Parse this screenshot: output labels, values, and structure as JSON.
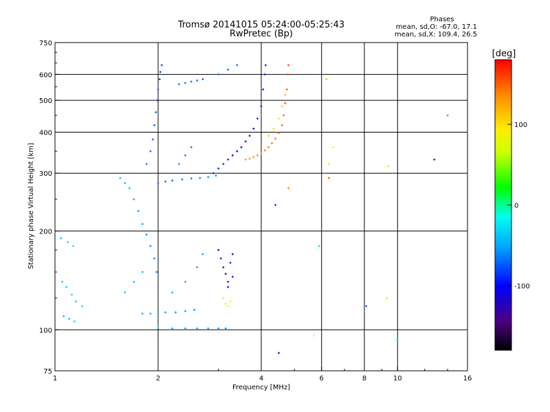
{
  "chart_data": {
    "type": "scatter",
    "title": "Tromsø 20141015 05:24:00-05:25:43",
    "subtitle": "RwPretec (Bp)",
    "stats": {
      "heading": "Phases",
      "line1": "mean, sd,O: -67.0, 17.1",
      "line2": "mean, sd,X: 109.4, 26.5"
    },
    "xlabel": "Frequency [MHz]",
    "ylabel": "Stationary phase Virtual Height [km]",
    "x_scale": "log",
    "y_scale": "log",
    "xlim": [
      1,
      16
    ],
    "ylim": [
      75,
      750
    ],
    "x_ticks": [
      1,
      2,
      4,
      6,
      8,
      10,
      16
    ],
    "y_ticks": [
      75,
      100,
      200,
      300,
      400,
      500,
      600,
      750
    ],
    "x_grid": [
      2,
      4,
      6,
      8,
      10
    ],
    "y_grid": [
      100,
      200,
      300,
      400,
      500,
      600
    ],
    "grid": true,
    "colorbar": {
      "label": "[deg]",
      "min": -180,
      "max": 180,
      "ticks": [
        -100,
        0,
        100
      ]
    },
    "series": [
      {
        "description_id": "O-mode traces",
        "points": [
          [
            1.05,
            140,
            -40
          ],
          [
            1.08,
            135,
            -38
          ],
          [
            1.12,
            128,
            -35
          ],
          [
            1.15,
            122,
            -33
          ],
          [
            1.2,
            118,
            -30
          ],
          [
            1.06,
            110,
            -42
          ],
          [
            1.1,
            108,
            -40
          ],
          [
            1.14,
            106,
            -38
          ],
          [
            1.04,
            190,
            -36
          ],
          [
            1.09,
            185,
            -34
          ],
          [
            1.13,
            180,
            -30
          ],
          [
            1.55,
            290,
            -45
          ],
          [
            1.6,
            280,
            -48
          ],
          [
            1.65,
            270,
            -50
          ],
          [
            1.7,
            250,
            -52
          ],
          [
            1.75,
            230,
            -55
          ],
          [
            1.8,
            210,
            -58
          ],
          [
            1.85,
            195,
            -60
          ],
          [
            1.9,
            180,
            -62
          ],
          [
            1.95,
            165,
            -64
          ],
          [
            1.98,
            150,
            -66
          ],
          [
            1.85,
            320,
            -70
          ],
          [
            1.9,
            350,
            -72
          ],
          [
            1.93,
            380,
            -74
          ],
          [
            1.95,
            420,
            -76
          ],
          [
            1.97,
            460,
            -78
          ],
          [
            1.99,
            500,
            -80
          ],
          [
            2.0,
            540,
            -82
          ],
          [
            2.02,
            580,
            -84
          ],
          [
            2.03,
            610,
            -86
          ],
          [
            2.05,
            640,
            -88
          ],
          [
            2.0,
            280,
            -75
          ],
          [
            2.1,
            283,
            -73
          ],
          [
            2.2,
            285,
            -71
          ],
          [
            2.35,
            287,
            -69
          ],
          [
            2.5,
            289,
            -67
          ],
          [
            2.65,
            290,
            -65
          ],
          [
            2.8,
            292,
            -64
          ],
          [
            2.95,
            295,
            -62
          ],
          [
            1.8,
            112,
            -50
          ],
          [
            1.9,
            112,
            -52
          ],
          [
            2.0,
            112,
            -54
          ],
          [
            2.1,
            113,
            -55
          ],
          [
            2.25,
            113,
            -57
          ],
          [
            2.4,
            114,
            -58
          ],
          [
            2.55,
            115,
            -60
          ],
          [
            2.0,
            102,
            -48
          ],
          [
            2.2,
            101,
            -50
          ],
          [
            2.4,
            101,
            -52
          ],
          [
            2.6,
            101,
            -54
          ],
          [
            2.8,
            101,
            -56
          ],
          [
            3.0,
            101,
            -58
          ],
          [
            3.15,
            101,
            -60
          ],
          [
            1.6,
            130,
            -44
          ],
          [
            1.7,
            140,
            -46
          ],
          [
            1.8,
            150,
            -48
          ],
          [
            2.2,
            130,
            -50
          ],
          [
            2.4,
            140,
            -52
          ],
          [
            2.6,
            155,
            -54
          ],
          [
            2.7,
            170,
            -56
          ],
          [
            2.3,
            320,
            -60
          ],
          [
            2.4,
            340,
            -62
          ],
          [
            2.5,
            360,
            -64
          ],
          [
            2.3,
            560,
            -66
          ],
          [
            2.4,
            565,
            -68
          ],
          [
            2.5,
            570,
            -70
          ],
          [
            2.6,
            575,
            -72
          ],
          [
            2.7,
            580,
            -74
          ],
          [
            3.0,
            600,
            -70
          ],
          [
            3.2,
            620,
            -72
          ],
          [
            3.4,
            640,
            -74
          ],
          [
            2.9,
            300,
            -90
          ],
          [
            3.0,
            310,
            -92
          ],
          [
            3.1,
            320,
            -94
          ],
          [
            3.2,
            330,
            -96
          ],
          [
            3.3,
            340,
            -98
          ],
          [
            3.4,
            350,
            -100
          ],
          [
            3.5,
            360,
            -102
          ],
          [
            3.6,
            375,
            -104
          ],
          [
            3.7,
            390,
            -106
          ],
          [
            3.8,
            410,
            -108
          ],
          [
            3.9,
            440,
            -108
          ],
          [
            4.0,
            480,
            -106
          ],
          [
            4.05,
            540,
            -104
          ],
          [
            4.1,
            600,
            -100
          ],
          [
            4.12,
            640,
            -98
          ],
          [
            3.0,
            175,
            -110
          ],
          [
            3.05,
            165,
            -115
          ],
          [
            3.1,
            155,
            -118
          ],
          [
            3.15,
            148,
            -120
          ],
          [
            3.2,
            140,
            -122
          ],
          [
            3.25,
            160,
            -112
          ],
          [
            3.3,
            170,
            -108
          ],
          [
            4.4,
            240,
            -90
          ],
          [
            3.2,
            135,
            -100
          ],
          [
            3.3,
            145,
            -95
          ]
        ]
      },
      {
        "description_id": "X-mode traces",
        "points": [
          [
            3.6,
            330,
            130
          ],
          [
            3.7,
            332,
            132
          ],
          [
            3.8,
            336,
            134
          ],
          [
            3.9,
            340,
            136
          ],
          [
            4.0,
            345,
            138
          ],
          [
            4.1,
            352,
            140
          ],
          [
            4.2,
            360,
            142
          ],
          [
            4.3,
            370,
            144
          ],
          [
            4.4,
            382,
            146
          ],
          [
            4.5,
            398,
            148
          ],
          [
            4.6,
            420,
            150
          ],
          [
            4.65,
            450,
            152
          ],
          [
            4.7,
            490,
            154
          ],
          [
            4.75,
            540,
            156
          ],
          [
            4.78,
            600,
            158
          ],
          [
            4.8,
            640,
            160
          ],
          [
            4.2,
            390,
            110
          ],
          [
            4.35,
            410,
            105
          ],
          [
            4.5,
            440,
            100
          ],
          [
            4.6,
            480,
            108
          ],
          [
            4.7,
            520,
            112
          ],
          [
            3.1,
            125,
            100
          ],
          [
            3.15,
            120,
            98
          ],
          [
            3.2,
            118,
            96
          ],
          [
            3.25,
            122,
            94
          ],
          [
            4.8,
            270,
            140
          ],
          [
            6.3,
            290,
            150
          ],
          [
            6.3,
            320,
            100
          ],
          [
            6.5,
            360,
            95
          ],
          [
            6.2,
            580,
            110
          ],
          [
            12.8,
            330,
            -140
          ],
          [
            14.0,
            450,
            150
          ],
          [
            9.4,
            315,
            100
          ],
          [
            9.3,
            125,
            60
          ],
          [
            5.9,
            180,
            20
          ],
          [
            4.5,
            85,
            -120
          ],
          [
            8.1,
            118,
            -80
          ],
          [
            10.0,
            93,
            -40
          ],
          [
            5.7,
            96,
            80
          ]
        ]
      }
    ]
  }
}
